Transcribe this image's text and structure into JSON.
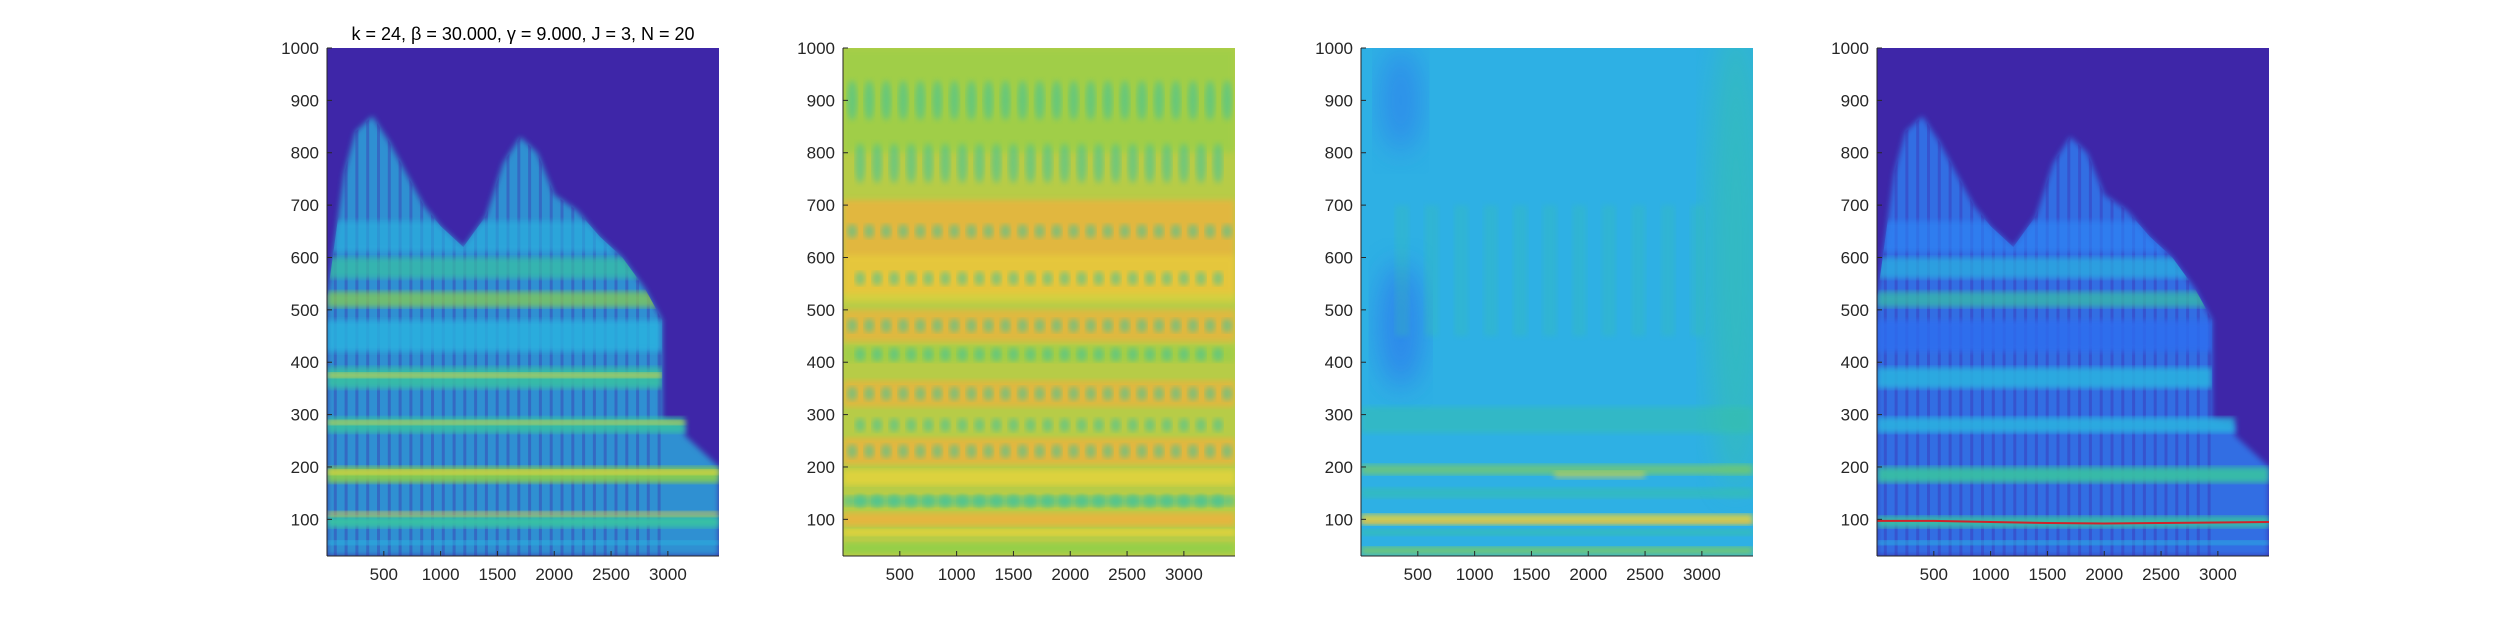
{
  "figure": {
    "title_text": "k = 24, β = 30.000, γ = 9.000, J = 3, N = 20",
    "colors": {
      "low": "#3e26a8",
      "blue": "#2e87f7",
      "cyan": "#2ab4e0",
      "teal": "#38c3a2",
      "green": "#8bd04a",
      "yellow": "#e9d43a",
      "orange": "#f0b03c",
      "red": "#d0222a"
    }
  },
  "chart_data": [
    {
      "type": "heatmap",
      "panel": "spectrogram",
      "title": "k = 24, β = 30.000, γ = 9.000, J = 3, N = 20",
      "xlabel": "",
      "ylabel": "",
      "xlim": [
        0,
        3450
      ],
      "ylim": [
        30,
        1000
      ],
      "xticks": [
        500,
        1000,
        1500,
        2000,
        2500,
        3000
      ],
      "yticks": [
        100,
        200,
        300,
        400,
        500,
        600,
        700,
        800,
        900,
        1000
      ],
      "background": "#3e26a8",
      "bands": [
        {
          "x0": 0,
          "x1": 3450,
          "y": 55,
          "h": 8,
          "color": "#2ab4e0",
          "o": 0.9
        },
        {
          "x0": 0,
          "x1": 3450,
          "y": 95,
          "h": 22,
          "color": "#38c3a2",
          "o": 0.95
        },
        {
          "x0": 0,
          "x1": 3450,
          "y": 110,
          "h": 10,
          "color": "#e9d43a",
          "o": 0.7
        },
        {
          "x0": 0,
          "x1": 3450,
          "y": 185,
          "h": 30,
          "color": "#8bd04a",
          "o": 0.9
        },
        {
          "x0": 0,
          "x1": 3450,
          "y": 190,
          "h": 10,
          "color": "#e9d43a",
          "o": 0.85
        },
        {
          "x0": 0,
          "x1": 3150,
          "y": 280,
          "h": 30,
          "color": "#38c3a2",
          "o": 0.85
        },
        {
          "x0": 0,
          "x1": 3150,
          "y": 285,
          "h": 8,
          "color": "#e9d43a",
          "o": 0.8
        },
        {
          "x0": 0,
          "x1": 2950,
          "y": 370,
          "h": 40,
          "color": "#38c3a2",
          "o": 0.85
        },
        {
          "x0": 0,
          "x1": 2950,
          "y": 375,
          "h": 10,
          "color": "#e9d43a",
          "o": 0.75
        },
        {
          "x0": 0,
          "x1": 2950,
          "y": 450,
          "h": 60,
          "color": "#2ab4e0",
          "o": 0.8
        },
        {
          "x0": 0,
          "x1": 2950,
          "y": 520,
          "h": 30,
          "color": "#8bd04a",
          "o": 0.7
        },
        {
          "x0": 0,
          "x1": 2950,
          "y": 580,
          "h": 40,
          "color": "#38c3a2",
          "o": 0.7
        },
        {
          "x0": 0,
          "x1": 2900,
          "y": 640,
          "h": 60,
          "color": "#2ab4e0",
          "o": 0.6
        }
      ],
      "envelope": [
        [
          0,
          520
        ],
        [
          150,
          760
        ],
        [
          250,
          840
        ],
        [
          400,
          870
        ],
        [
          550,
          820
        ],
        [
          700,
          760
        ],
        [
          850,
          700
        ],
        [
          1000,
          660
        ],
        [
          1200,
          620
        ],
        [
          1400,
          680
        ],
        [
          1550,
          780
        ],
        [
          1700,
          830
        ],
        [
          1850,
          800
        ],
        [
          2000,
          720
        ],
        [
          2200,
          690
        ],
        [
          2400,
          640
        ],
        [
          2600,
          600
        ],
        [
          2800,
          540
        ],
        [
          2950,
          480
        ],
        [
          2950,
          290
        ],
        [
          3150,
          280
        ],
        [
          3150,
          260
        ],
        [
          3450,
          200
        ],
        [
          3450,
          30
        ],
        [
          0,
          30
        ]
      ]
    },
    {
      "type": "heatmap",
      "panel": "smoothed",
      "title": "",
      "xlabel": "",
      "ylabel": "",
      "xlim": [
        0,
        3450
      ],
      "ylim": [
        30,
        1000
      ],
      "xticks": [
        500,
        1000,
        1500,
        2000,
        2500,
        3000
      ],
      "yticks": [
        100,
        200,
        300,
        400,
        500,
        600,
        700,
        800,
        900,
        1000
      ],
      "background": "#b7cc47",
      "bands": [
        {
          "x0": 0,
          "x1": 3450,
          "y": 900,
          "h": 200,
          "color": "#8bd04a",
          "o": 0.5
        },
        {
          "x0": 0,
          "x1": 3450,
          "y": 620,
          "h": 180,
          "color": "#f0b03c",
          "o": 0.75
        },
        {
          "x0": 0,
          "x1": 3450,
          "y": 560,
          "h": 90,
          "color": "#e9d43a",
          "o": 0.55
        },
        {
          "x0": 0,
          "x1": 3450,
          "y": 470,
          "h": 60,
          "color": "#f0b03c",
          "o": 0.7
        },
        {
          "x0": 0,
          "x1": 3450,
          "y": 415,
          "h": 30,
          "color": "#8bd04a",
          "o": 0.5
        },
        {
          "x0": 0,
          "x1": 3450,
          "y": 340,
          "h": 50,
          "color": "#f0b03c",
          "o": 0.7
        },
        {
          "x0": 0,
          "x1": 3450,
          "y": 230,
          "h": 50,
          "color": "#f0b03c",
          "o": 0.75
        },
        {
          "x0": 0,
          "x1": 3450,
          "y": 180,
          "h": 30,
          "color": "#e9d43a",
          "o": 0.75
        },
        {
          "x0": 0,
          "x1": 3450,
          "y": 135,
          "h": 20,
          "color": "#38c3a2",
          "o": 0.55
        },
        {
          "x0": 0,
          "x1": 3450,
          "y": 100,
          "h": 25,
          "color": "#f0b03c",
          "o": 0.8
        },
        {
          "x0": 0,
          "x1": 3450,
          "y": 75,
          "h": 12,
          "color": "#e9d43a",
          "o": 0.9
        },
        {
          "x0": 0,
          "x1": 3450,
          "y": 45,
          "h": 20,
          "color": "#8bd04a",
          "o": 0.8
        }
      ]
    },
    {
      "type": "heatmap",
      "panel": "difference",
      "title": "",
      "xlabel": "",
      "ylabel": "",
      "xlim": [
        0,
        3450
      ],
      "ylim": [
        30,
        1000
      ],
      "xticks": [
        500,
        1000,
        1500,
        2000,
        2500,
        3000
      ],
      "yticks": [
        100,
        200,
        300,
        400,
        500,
        600,
        700,
        800,
        900,
        1000
      ],
      "background": "#2eb0e4",
      "bands": [
        {
          "x0": 0,
          "x1": 3450,
          "y": 290,
          "h": 50,
          "color": "#38c3a2",
          "o": 0.45
        },
        {
          "x0": 0,
          "x1": 3450,
          "y": 195,
          "h": 20,
          "color": "#8bd04a",
          "o": 0.6
        },
        {
          "x0": 1700,
          "x1": 2500,
          "y": 185,
          "h": 15,
          "color": "#e9d43a",
          "o": 0.5
        },
        {
          "x0": 0,
          "x1": 3450,
          "y": 150,
          "h": 20,
          "color": "#38c3a2",
          "o": 0.5
        },
        {
          "x0": 0,
          "x1": 3450,
          "y": 100,
          "h": 20,
          "color": "#e9d43a",
          "o": 0.85
        },
        {
          "x0": 0,
          "x1": 3450,
          "y": 95,
          "h": 6,
          "color": "#f0b03c",
          "o": 0.7
        },
        {
          "x0": 0,
          "x1": 3450,
          "y": 75,
          "h": 12,
          "color": "#38c3a2",
          "o": 0.6
        },
        {
          "x0": 0,
          "x1": 3450,
          "y": 40,
          "h": 15,
          "color": "#8bd04a",
          "o": 0.7
        }
      ],
      "blobs": [
        {
          "cx": 350,
          "cy": 470,
          "rx": 200,
          "ry": 120,
          "color": "#2e6ef0",
          "o": 0.6
        },
        {
          "cx": 350,
          "cy": 900,
          "rx": 180,
          "ry": 100,
          "color": "#2e6ef0",
          "o": 0.5
        },
        {
          "cx": 3300,
          "cy": 600,
          "rx": 250,
          "ry": 450,
          "color": "#38c3a2",
          "o": 0.5
        }
      ]
    },
    {
      "type": "heatmap",
      "panel": "overlay",
      "title": "",
      "xlabel": "",
      "ylabel": "",
      "xlim": [
        0,
        3450
      ],
      "ylim": [
        30,
        1000
      ],
      "xticks": [
        500,
        1000,
        1500,
        2000,
        2500,
        3000
      ],
      "yticks": [
        100,
        200,
        300,
        400,
        500,
        600,
        700,
        800,
        900,
        1000
      ],
      "background": "#3e26a8",
      "bands": [
        {
          "x0": 0,
          "x1": 3450,
          "y": 55,
          "h": 8,
          "color": "#2ab4e0",
          "o": 0.9
        },
        {
          "x0": 0,
          "x1": 3450,
          "y": 95,
          "h": 22,
          "color": "#38c3a2",
          "o": 0.9
        },
        {
          "x0": 0,
          "x1": 3450,
          "y": 185,
          "h": 30,
          "color": "#38c3a2",
          "o": 0.9
        },
        {
          "x0": 0,
          "x1": 3150,
          "y": 280,
          "h": 30,
          "color": "#2ab4e0",
          "o": 0.85
        },
        {
          "x0": 0,
          "x1": 2950,
          "y": 370,
          "h": 40,
          "color": "#2ab4e0",
          "o": 0.85
        },
        {
          "x0": 0,
          "x1": 2950,
          "y": 450,
          "h": 60,
          "color": "#2e6ef0",
          "o": 0.8
        },
        {
          "x0": 0,
          "x1": 2950,
          "y": 520,
          "h": 30,
          "color": "#38c3a2",
          "o": 0.7
        },
        {
          "x0": 0,
          "x1": 2950,
          "y": 580,
          "h": 40,
          "color": "#2ab4e0",
          "o": 0.7
        },
        {
          "x0": 0,
          "x1": 2900,
          "y": 640,
          "h": 60,
          "color": "#2e87f7",
          "o": 0.6
        }
      ],
      "envelope": [
        [
          0,
          520
        ],
        [
          150,
          760
        ],
        [
          250,
          840
        ],
        [
          400,
          870
        ],
        [
          550,
          820
        ],
        [
          700,
          760
        ],
        [
          850,
          700
        ],
        [
          1000,
          660
        ],
        [
          1200,
          620
        ],
        [
          1400,
          680
        ],
        [
          1550,
          780
        ],
        [
          1700,
          830
        ],
        [
          1850,
          800
        ],
        [
          2000,
          720
        ],
        [
          2200,
          690
        ],
        [
          2400,
          640
        ],
        [
          2600,
          600
        ],
        [
          2800,
          540
        ],
        [
          2950,
          480
        ],
        [
          2950,
          290
        ],
        [
          3150,
          280
        ],
        [
          3150,
          260
        ],
        [
          3450,
          200
        ],
        [
          3450,
          30
        ],
        [
          0,
          30
        ]
      ],
      "track": {
        "color": "#d0222a",
        "points": [
          [
            0,
            97
          ],
          [
            500,
            97
          ],
          [
            1000,
            95
          ],
          [
            1500,
            93
          ],
          [
            2000,
            92
          ],
          [
            2500,
            93
          ],
          [
            3000,
            94
          ],
          [
            3450,
            95
          ]
        ]
      }
    }
  ]
}
